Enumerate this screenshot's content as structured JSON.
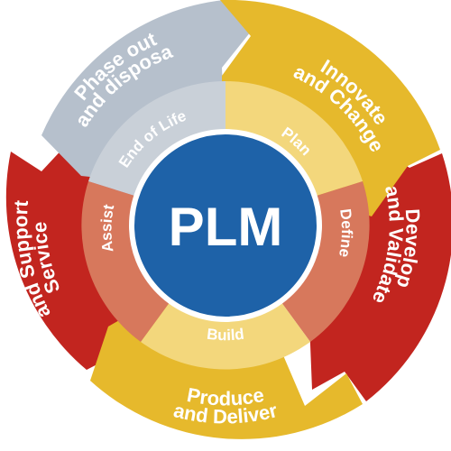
{
  "center": {
    "label": "PLM",
    "color": "#1e62a8"
  },
  "outer_segments": [
    {
      "id": "innovate",
      "lines": [
        "Innovate",
        "and Change"
      ],
      "color": "#e6b92c"
    },
    {
      "id": "develop",
      "lines": [
        "Develop",
        "and Validate"
      ],
      "color": "#c2251f"
    },
    {
      "id": "produce",
      "lines": [
        "Produce",
        "and Deliver"
      ],
      "color": "#e6b92c"
    },
    {
      "id": "service",
      "lines": [
        "Service",
        "and Support"
      ],
      "color": "#c2251f"
    },
    {
      "id": "phase-out",
      "lines": [
        "Phase out",
        "and disposal"
      ],
      "color": "#b6c0cc"
    }
  ],
  "inner_segments": [
    {
      "id": "plan",
      "label": "Plan",
      "color": "#f3d77c"
    },
    {
      "id": "define",
      "label": "Define",
      "color": "#d7785c"
    },
    {
      "id": "build",
      "label": "Build",
      "color": "#f3d77c"
    },
    {
      "id": "assist",
      "label": "Assist",
      "color": "#d7785c"
    },
    {
      "id": "end-of-life",
      "label": "End of Life",
      "color": "#c9d0d8"
    }
  ]
}
